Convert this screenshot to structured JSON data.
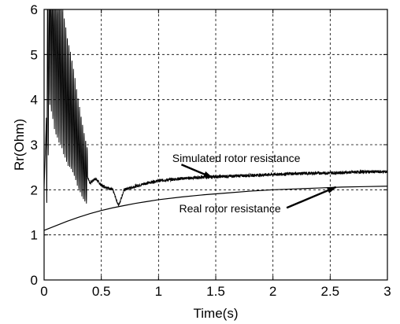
{
  "chart_data": {
    "type": "line",
    "xlabel": "Time(s)",
    "ylabel": "Rr(Ohm)",
    "xlim": [
      0,
      3
    ],
    "ylim": [
      0,
      6
    ],
    "x_ticks": [
      "0",
      "0.5",
      "1",
      "1.5",
      "2",
      "2.5",
      "3"
    ],
    "y_ticks": [
      "0",
      "1",
      "2",
      "3",
      "4",
      "5",
      "6"
    ],
    "grid": true,
    "series": [
      {
        "name": "Simulated rotor resistance",
        "color": "#000000",
        "x": [
          0.0,
          0.05,
          0.1,
          0.15,
          0.2,
          0.25,
          0.3,
          0.35,
          0.4,
          0.45,
          0.5,
          0.55,
          0.6,
          0.65,
          0.7,
          0.8,
          0.9,
          1.0,
          1.2,
          1.4,
          1.6,
          1.8,
          2.0,
          2.2,
          2.4,
          2.6,
          2.8,
          3.0
        ],
        "y": [
          2.0,
          6.0,
          5.1,
          4.6,
          4.0,
          3.6,
          3.0,
          2.5,
          2.15,
          2.25,
          2.1,
          2.05,
          2.0,
          1.65,
          2.0,
          2.08,
          2.15,
          2.2,
          2.25,
          2.28,
          2.3,
          2.32,
          2.34,
          2.36,
          2.37,
          2.38,
          2.4,
          2.4
        ]
      },
      {
        "name": "Real rotor resistance",
        "color": "#000000",
        "x": [
          0.0,
          0.1,
          0.2,
          0.3,
          0.4,
          0.5,
          0.6,
          0.7,
          0.8,
          0.9,
          1.0,
          1.2,
          1.4,
          1.6,
          1.8,
          2.0,
          2.2,
          2.4,
          2.6,
          2.8,
          3.0
        ],
        "y": [
          1.1,
          1.2,
          1.3,
          1.39,
          1.47,
          1.54,
          1.6,
          1.65,
          1.7,
          1.74,
          1.78,
          1.84,
          1.89,
          1.93,
          1.97,
          2.0,
          2.02,
          2.04,
          2.06,
          2.07,
          2.08
        ]
      }
    ],
    "annotations": [
      {
        "text": "Simulated rotor resistance",
        "x": 1.12,
        "y": 2.62,
        "arrow_to": [
          1.47,
          2.27
        ],
        "arrow_from": [
          1.2,
          2.56
        ]
      },
      {
        "text": "Real rotor resistance",
        "x": 1.18,
        "y": 1.5,
        "arrow_to": [
          2.55,
          2.06
        ],
        "arrow_from": [
          2.12,
          1.6
        ]
      }
    ]
  }
}
